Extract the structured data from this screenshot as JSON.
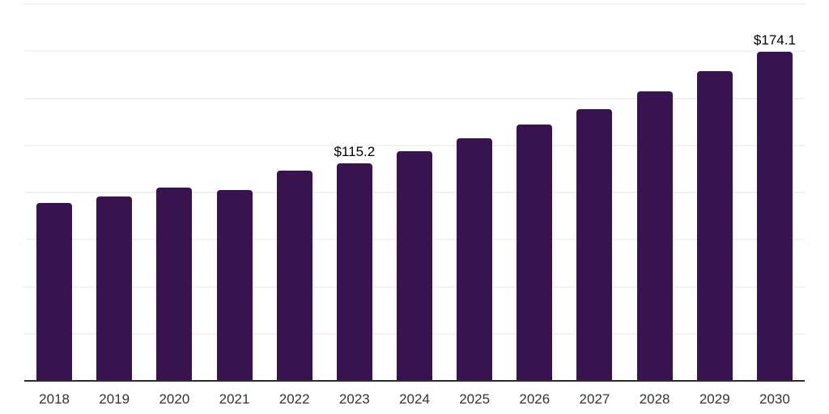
{
  "chart_data": {
    "type": "bar",
    "title": "",
    "xlabel": "",
    "ylabel": "",
    "categories": [
      "2018",
      "2019",
      "2020",
      "2021",
      "2022",
      "2023",
      "2024",
      "2025",
      "2026",
      "2027",
      "2028",
      "2029",
      "2030"
    ],
    "values": [
      94.0,
      97.5,
      102.0,
      100.9,
      111.0,
      115.2,
      121.4,
      128.3,
      135.6,
      143.7,
      153.2,
      163.9,
      174.1
    ],
    "value_labels": {
      "2023": "$115.2",
      "2030": "$174.1"
    },
    "ylim": [
      0,
      200
    ],
    "gridline_step": 25,
    "grid": true,
    "legend": false,
    "colors": {
      "bar": "#38134F",
      "axis_line": "#2b2b2b",
      "gridline": "#f2f2f2",
      "tick_label": "#333333",
      "data_label": "#000000"
    }
  }
}
